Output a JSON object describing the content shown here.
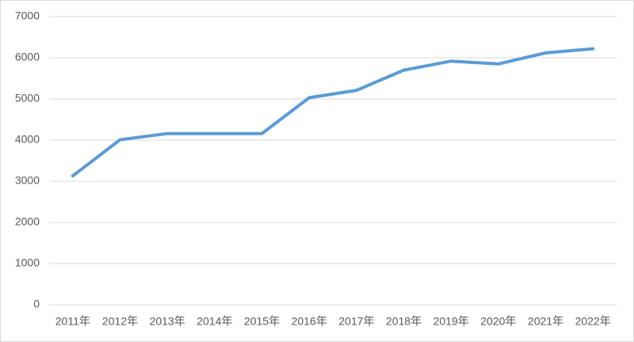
{
  "chart_data": {
    "type": "line",
    "categories": [
      "2011年",
      "2012年",
      "2013年",
      "2014年",
      "2015年",
      "2016年",
      "2017年",
      "2018年",
      "2019年",
      "2020年",
      "2021年",
      "2022年"
    ],
    "values": [
      3130,
      4010,
      4160,
      4160,
      4160,
      5030,
      5210,
      5700,
      5920,
      5850,
      6120,
      6220
    ],
    "color": "#5b9bd5",
    "ylim": [
      0,
      7000
    ],
    "yticks": [
      0,
      1000,
      2000,
      3000,
      4000,
      5000,
      6000,
      7000
    ],
    "grid": true
  }
}
